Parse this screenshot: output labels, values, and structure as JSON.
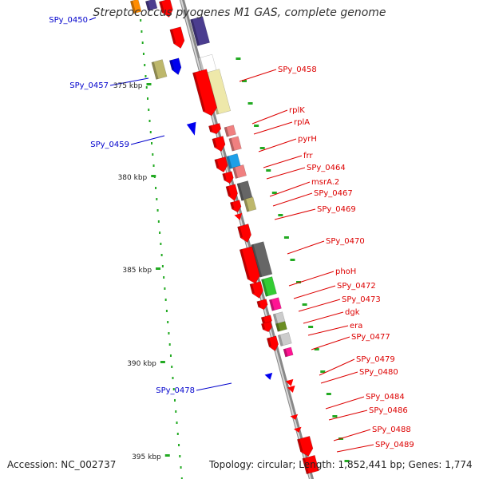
{
  "title": "Streptococcus pyogenes M1 GAS, complete genome",
  "footer": {
    "accession": "Accession: NC_002737",
    "topology": "Topology: circular; Length: 1,852,441 bp; Genes: 1,774"
  },
  "colors": {
    "gene_red": "#ff0000",
    "label_red": "#dd0000",
    "label_blue": "#0000cc",
    "tick_green": "#22aa22",
    "backbone": "#999999",
    "purple": "#4b3d8f",
    "khaki": "#eee8aa",
    "olive_khaki": "#bdb76b",
    "cyan": "#1e9fe8",
    "dark_gray": "#666666",
    "light_gray": "#cccccc",
    "green": "#33cc33",
    "magenta": "#ff1493",
    "olive": "#6b8e23",
    "pink": "#f08080"
  },
  "scale_labels": [
    "375 kbp",
    "380 kbp",
    "385 kbp",
    "390 kbp",
    "395 kbp"
  ],
  "right_labels": [
    "SPy_0458",
    "rplK",
    "rplA",
    "pyrH",
    "frr",
    "SPy_0464",
    "msrA.2",
    "SPy_0467",
    "SPy_0469",
    "SPy_0470",
    "phoH",
    "SPy_0472",
    "SPy_0473",
    "dgk",
    "era",
    "SPy_0477",
    "SPy_0479",
    "SPy_0480",
    "SPy_0484",
    "SPy_0486",
    "SPy_0488",
    "SPy_0489"
  ],
  "left_labels": [
    "SPy_0450",
    "SPy_0457",
    "SPy_0459",
    "SPy_0478"
  ]
}
